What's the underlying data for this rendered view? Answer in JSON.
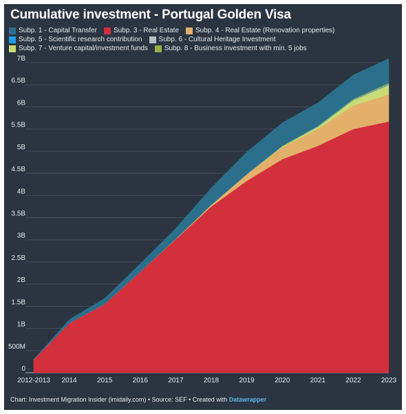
{
  "title": "Cumulative investment - Portugal Golden Visa",
  "footer": {
    "prefix": "Chart: Investment Migration Insider (imidaily.com) • Source: SEF • Created with ",
    "brand": "Datawrapper"
  },
  "chart_data": {
    "type": "area",
    "stacked": true,
    "title": "Cumulative investment - Portugal Golden Visa",
    "xlabel": "",
    "ylabel": "",
    "categories": [
      "2012-2013",
      "2014",
      "2015",
      "2016",
      "2017",
      "2018",
      "2019",
      "2020",
      "2021",
      "2022",
      "2023"
    ],
    "ylim": [
      0,
      7
    ],
    "yticks": [
      "0",
      "500M",
      "1B",
      "1.5B",
      "2B",
      "2.5B",
      "3B",
      "3.5B",
      "4B",
      "4.5B",
      "5B",
      "5.5B",
      "6B",
      "6.5B",
      "7B"
    ],
    "grid": true,
    "legend_position": "top",
    "series": [
      {
        "name": "Subp. 3 - Real Estate",
        "color": "#d42f3d",
        "values": [
          0.3,
          1.12,
          1.55,
          2.28,
          3.01,
          3.75,
          4.33,
          4.82,
          5.12,
          5.5,
          5.67
        ]
      },
      {
        "name": "Subp. 4 - Real Estate (Renovation properties)",
        "color": "#e3b06a",
        "values": [
          0.0,
          0.0,
          0.0,
          0.0,
          0.01,
          0.04,
          0.15,
          0.27,
          0.38,
          0.53,
          0.61
        ]
      },
      {
        "name": "Subp. 7 - Venture capital/investment funds",
        "color": "#c9db74",
        "values": [
          0.0,
          0.0,
          0.0,
          0.0,
          0.0,
          0.0,
          0.0,
          0.02,
          0.05,
          0.12,
          0.21
        ]
      },
      {
        "name": "Subp. 6 - Cultural Heritage Investment",
        "color": "#b4bcc4",
        "values": [
          0.0,
          0.0,
          0.0,
          0.0,
          0.0,
          0.0,
          0.0,
          0.0,
          0.0,
          0.0,
          0.01
        ]
      },
      {
        "name": "Subp. 5 - Scientific research contribution",
        "color": "#1b9ce4",
        "values": [
          0.0,
          0.0,
          0.0,
          0.0,
          0.0,
          0.0,
          0.0,
          0.0,
          0.01,
          0.01,
          0.01
        ]
      },
      {
        "name": "Subp. 8 - Business investment with min. 5 jobs",
        "color": "#9ab04c",
        "values": [
          0.0,
          0.0,
          0.0,
          0.0,
          0.0,
          0.0,
          0.0,
          0.01,
          0.01,
          0.02,
          0.03
        ]
      },
      {
        "name": "Subp. 1 - Capital Transfer",
        "color": "#2c6f8c",
        "values": [
          0.0,
          0.08,
          0.13,
          0.18,
          0.24,
          0.38,
          0.5,
          0.52,
          0.52,
          0.54,
          0.55
        ]
      }
    ],
    "legend_order": [
      "Subp. 1 - Capital Transfer",
      "Subp. 3 - Real Estate",
      "Subp. 4 - Real Estate (Renovation properties)",
      "Subp. 5 - Scientific research contribution",
      "Subp. 6 - Cultural Heritage Investment",
      "Subp. 7 - Venture capital/investment funds",
      "Subp. 8 - Business investment with min. 5 jobs"
    ]
  }
}
